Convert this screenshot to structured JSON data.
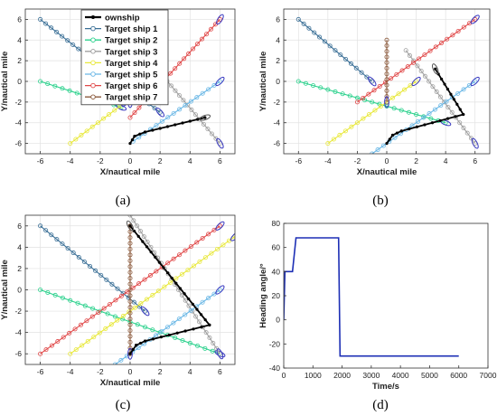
{
  "panel_labels": [
    "(a)",
    "(b)",
    "(c)",
    "(d)"
  ],
  "chart_data": [
    {
      "type": "line",
      "panel": "(a)",
      "xlabel": "X/nautical mile",
      "ylabel": "Y/nautical mile",
      "xlim": [
        -7,
        7
      ],
      "ylim": [
        -7,
        7
      ],
      "xticks": [
        -6,
        -4,
        -2,
        0,
        2,
        4,
        6
      ],
      "yticks": [
        -6,
        -4,
        -2,
        0,
        2,
        4,
        6
      ],
      "grid": true,
      "legend": "top-left",
      "series": [
        {
          "name": "ownship",
          "color": "#000000",
          "points": [
            [
              0,
              -6
            ],
            [
              0.3,
              -5.3
            ],
            [
              1,
              -4.9
            ],
            [
              5,
              -3.5
            ]
          ]
        },
        {
          "name": "Target ship 1",
          "color": "#3a6f96",
          "points": [
            [
              -6,
              6
            ],
            [
              2,
              -3
            ]
          ]
        },
        {
          "name": "Target ship 2",
          "color": "#2ad18c",
          "points": [
            [
              -6,
              0
            ],
            [
              -0.6,
              -2.5
            ]
          ]
        },
        {
          "name": "Target ship 3",
          "color": "#a0a0a0",
          "points": [
            [
              2.2,
              0.5
            ],
            [
              6,
              -6
            ]
          ]
        },
        {
          "name": "Target ship 4",
          "color": "#e8e83a",
          "points": [
            [
              -4,
              -6
            ],
            [
              -0.3,
              -2
            ]
          ]
        },
        {
          "name": "Target ship 5",
          "color": "#6bb8e6",
          "points": [
            [
              0.2,
              -5.8
            ],
            [
              6,
              0
            ]
          ]
        },
        {
          "name": "Target ship 6",
          "color": "#e04848",
          "points": [
            [
              0,
              -3.5
            ],
            [
              6,
              6
            ]
          ]
        },
        {
          "name": "Target ship 7",
          "color": "#8b5a3c",
          "points": [
            [
              0,
              4
            ],
            [
              0,
              -2
            ]
          ]
        }
      ]
    },
    {
      "type": "line",
      "panel": "(b)",
      "xlabel": "X/nautical mile",
      "ylabel": "Y/nautical mile",
      "xlim": [
        -7,
        7
      ],
      "ylim": [
        -7,
        7
      ],
      "xticks": [
        -6,
        -4,
        -2,
        0,
        2,
        4,
        6
      ],
      "yticks": [
        -6,
        -4,
        -2,
        0,
        2,
        4,
        6
      ],
      "grid": true,
      "series": [
        {
          "name": "ownship",
          "color": "#000000",
          "points": [
            [
              0,
              -6
            ],
            [
              0.4,
              -5.2
            ],
            [
              1,
              -4.8
            ],
            [
              5.2,
              -3.2
            ],
            [
              3.3,
              1.2
            ]
          ]
        },
        {
          "name": "Target ship 1",
          "color": "#3a6f96",
          "points": [
            [
              -6,
              6
            ],
            [
              -1,
              0
            ]
          ]
        },
        {
          "name": "Target ship 2",
          "color": "#2ad18c",
          "points": [
            [
              -6,
              0
            ],
            [
              4,
              -4
            ]
          ]
        },
        {
          "name": "Target ship 3",
          "color": "#a0a0a0",
          "points": [
            [
              1.3,
              3
            ],
            [
              6,
              -6
            ]
          ]
        },
        {
          "name": "Target ship 4",
          "color": "#e8e83a",
          "points": [
            [
              -4,
              -6
            ],
            [
              2,
              0
            ]
          ]
        },
        {
          "name": "Target ship 5",
          "color": "#6bb8e6",
          "points": [
            [
              -1,
              -7
            ],
            [
              6,
              0
            ]
          ]
        },
        {
          "name": "Target ship 6",
          "color": "#e04848",
          "points": [
            [
              -2,
              -2
            ],
            [
              6,
              6
            ]
          ]
        },
        {
          "name": "Target ship 7",
          "color": "#8b5a3c",
          "points": [
            [
              0,
              4
            ],
            [
              0,
              -2
            ]
          ]
        }
      ]
    },
    {
      "type": "line",
      "panel": "(c)",
      "xlabel": "X/nautical mile",
      "ylabel": "Y/nautical mile",
      "xlim": [
        -7,
        7
      ],
      "ylim": [
        -7,
        7
      ],
      "xticks": [
        -6,
        -4,
        -2,
        0,
        2,
        4,
        6
      ],
      "yticks": [
        -6,
        -4,
        -2,
        0,
        2,
        4,
        6
      ],
      "grid": true,
      "series": [
        {
          "name": "ownship",
          "color": "#000000",
          "points": [
            [
              0,
              -6
            ],
            [
              0.4,
              -5.2
            ],
            [
              1,
              -4.8
            ],
            [
              5.3,
              -3.3
            ],
            [
              0,
              6
            ]
          ]
        },
        {
          "name": "Target ship 1",
          "color": "#3a6f96",
          "points": [
            [
              -6,
              6
            ],
            [
              1,
              -2
            ]
          ]
        },
        {
          "name": "Target ship 2",
          "color": "#2ad18c",
          "points": [
            [
              -6,
              0
            ],
            [
              6,
              -6
            ]
          ]
        },
        {
          "name": "Target ship 3",
          "color": "#a0a0a0",
          "points": [
            [
              0,
              7
            ],
            [
              6,
              -6
            ]
          ]
        },
        {
          "name": "Target ship 4",
          "color": "#e8e83a",
          "points": [
            [
              -4,
              -6
            ],
            [
              7,
              5
            ]
          ]
        },
        {
          "name": "Target ship 5",
          "color": "#6bb8e6",
          "points": [
            [
              -1,
              -7
            ],
            [
              6,
              0
            ]
          ]
        },
        {
          "name": "Target ship 6",
          "color": "#e04848",
          "points": [
            [
              -6,
              -6
            ],
            [
              6,
              6
            ]
          ]
        },
        {
          "name": "Target ship 7",
          "color": "#8b5a3c",
          "points": [
            [
              0,
              6
            ],
            [
              0,
              -6
            ]
          ]
        }
      ]
    },
    {
      "type": "line",
      "panel": "(d)",
      "xlabel": "Time/s",
      "ylabel": "Heading angle/°",
      "xlim": [
        0,
        7000
      ],
      "ylim": [
        -40,
        80
      ],
      "xticks": [
        0,
        1000,
        2000,
        3000,
        4000,
        5000,
        6000,
        7000
      ],
      "yticks": [
        -40,
        -20,
        0,
        20,
        40,
        60,
        80
      ],
      "grid": false,
      "series": [
        {
          "name": "heading",
          "color": "#1d2fb5",
          "points": [
            [
              0,
              0
            ],
            [
              40,
              40
            ],
            [
              300,
              40
            ],
            [
              420,
              68
            ],
            [
              1880,
              68
            ],
            [
              1930,
              -30
            ],
            [
              6000,
              -30
            ]
          ]
        }
      ]
    }
  ]
}
